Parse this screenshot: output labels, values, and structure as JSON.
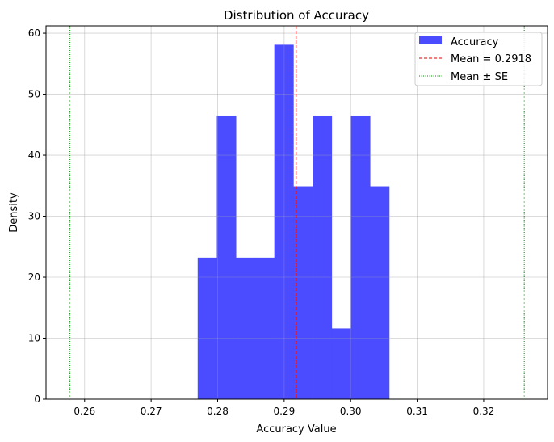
{
  "chart_data": {
    "type": "histogram",
    "title": "Distribution of Accuracy",
    "xlabel": "Accuracy Value",
    "ylabel": "Density",
    "xlim": [
      0.2542,
      0.3296
    ],
    "ylim": [
      0,
      61.2
    ],
    "xticks": [
      0.26,
      0.27,
      0.28,
      0.29,
      0.3,
      0.31,
      0.32
    ],
    "xtick_labels": [
      "0.26",
      "0.27",
      "0.28",
      "0.29",
      "0.30",
      "0.31",
      "0.32"
    ],
    "yticks": [
      0,
      10,
      20,
      30,
      40,
      50,
      60
    ],
    "ytick_labels": [
      "0",
      "10",
      "20",
      "30",
      "40",
      "50",
      "60"
    ],
    "grid": true,
    "bins": {
      "start": 0.277,
      "end": 0.3058,
      "density": [
        23.2,
        46.5,
        23.2,
        23.2,
        58.1,
        34.9,
        46.5,
        11.6,
        46.5,
        34.9
      ]
    },
    "mean": 0.2918,
    "mean_minus_se": 0.2578,
    "mean_plus_se": 0.3261,
    "legend": {
      "placement": "top-right",
      "entries": [
        "Accuracy",
        "Mean = 0.2918",
        "Mean ± SE"
      ]
    },
    "colors": {
      "bars": "#4b4bff",
      "mean": "#dd0000",
      "se": "#008800"
    }
  }
}
